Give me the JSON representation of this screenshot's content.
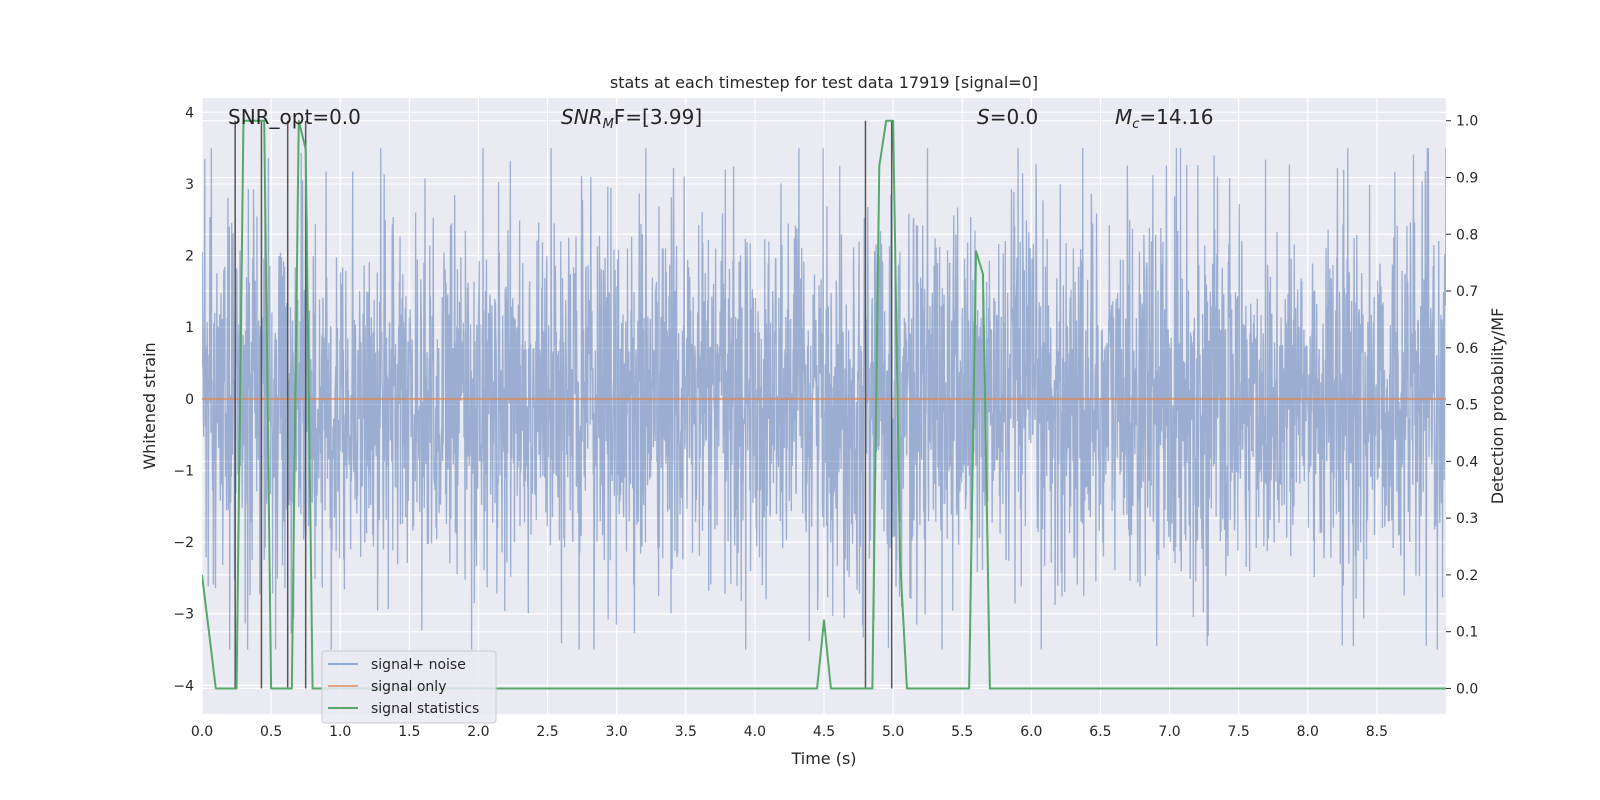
{
  "chart_data": {
    "type": "line",
    "title": "stats at each timestep for test data 17919 [signal=0]",
    "xlabel": "Time (s)",
    "ylabel_left": "Whitened strain",
    "ylabel_right": "Detection probability/MF",
    "xlim": [
      0,
      9.0
    ],
    "ylim_left": [
      -4.4,
      4.2
    ],
    "ylim_right": [
      -0.045,
      1.04
    ],
    "xticks": [
      "0.0",
      "0.5",
      "1.0",
      "1.5",
      "2.0",
      "2.5",
      "3.0",
      "3.5",
      "4.0",
      "4.5",
      "5.0",
      "5.5",
      "6.0",
      "6.5",
      "7.0",
      "7.5",
      "8.0",
      "8.5"
    ],
    "yticks_left": [
      "−4",
      "−3",
      "−2",
      "−1",
      "0",
      "1",
      "2",
      "3",
      "4"
    ],
    "yticks_right": [
      "0.0",
      "0.1",
      "0.2",
      "0.3",
      "0.4",
      "0.5",
      "0.6",
      "0.7",
      "0.8",
      "0.9",
      "1.0"
    ],
    "grid": true,
    "legend_position": "lower-left",
    "colors": {
      "noise": "#4c72b0",
      "signal_only": "#dd8452",
      "statistics": "#55a868",
      "markers": "#555555",
      "plot_bg": "#eaeaf2"
    },
    "annotations": [
      {
        "text": "SNR_opt=0.0",
        "x": 0.2,
        "y_right": 1.015
      },
      {
        "text_main": "SNR",
        "text_sub": "M",
        "text_rest": "F=[3.99]",
        "x": 2.6,
        "y_right": 1.015
      },
      {
        "text_main": "S",
        "text_rest": "=0.0",
        "x": 5.6,
        "y_right": 1.015
      },
      {
        "text_main": "M",
        "text_sub": "c",
        "text_rest": "=14.16",
        "x": 6.6,
        "y_right": 1.015
      }
    ],
    "series": [
      {
        "name": "signal+ noise",
        "style": "line",
        "amplitude_typical": 1.3,
        "amplitude_peak": 3.5,
        "range": [
          0,
          9.0
        ]
      },
      {
        "name": "signal only",
        "style": "line",
        "values_constant": 0
      },
      {
        "name": "signal statistics",
        "style": "line",
        "x": [
          0.0,
          0.05,
          0.1,
          0.15,
          0.2,
          0.25,
          0.3,
          0.35,
          0.4,
          0.45,
          0.5,
          0.55,
          0.6,
          0.65,
          0.7,
          0.75,
          0.8,
          0.85,
          0.9,
          1.0,
          4.4,
          4.45,
          4.5,
          4.55,
          4.6,
          4.8,
          4.85,
          4.9,
          4.95,
          5.0,
          5.05,
          5.1,
          5.15,
          5.5,
          5.55,
          5.6,
          5.65,
          5.7,
          5.75,
          5.8,
          9.0
        ],
        "y": [
          0.2,
          0.1,
          0.0,
          0.0,
          0.0,
          0.0,
          1.0,
          1.0,
          1.0,
          1.0,
          0.0,
          0.0,
          0.0,
          0.0,
          1.0,
          0.95,
          0.0,
          0.0,
          0.0,
          0.0,
          0.0,
          0.0,
          0.12,
          0.0,
          0.0,
          0.0,
          0.0,
          0.92,
          1.0,
          1.0,
          0.23,
          0.0,
          0.0,
          0.0,
          0.0,
          0.77,
          0.73,
          0.0,
          0.0,
          0.0,
          0.0
        ]
      }
    ],
    "marker_lines_x": [
      0.24,
      0.43,
      0.62,
      0.75,
      4.8,
      4.99
    ]
  }
}
